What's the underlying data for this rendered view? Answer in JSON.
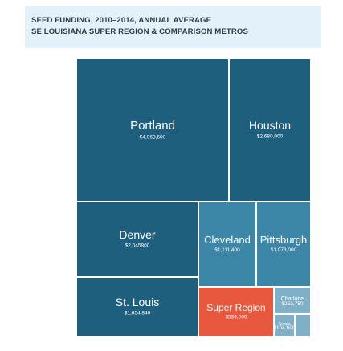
{
  "title": {
    "line1": "SEED FUNDING, 2010–2014, ANNUAL AVERAGE",
    "line2": "SE LOUISIANA SUPER REGION & COMPARISON METROS"
  },
  "colors": {
    "dark": "#1f5f7e",
    "mid": "#3c86a8",
    "light": "#7fb0c8",
    "highlight": "#e8583e"
  },
  "chart_data": {
    "type": "treemap",
    "title": "SEED FUNDING, 2010–2014, ANNUAL AVERAGE",
    "subtitle": "SE LOUISIANA SUPER REGION & COMPARISON METROS",
    "items": [
      {
        "name": "Portland",
        "label": "$4,963,600",
        "value": 4963600,
        "color": "dark"
      },
      {
        "name": "Houston",
        "label": "$2,680,000",
        "value": 2680000,
        "color": "dark"
      },
      {
        "name": "Denver",
        "label": "$2,045800",
        "value": 2045800,
        "color": "dark"
      },
      {
        "name": "St. Louis",
        "label": "$1,654,840",
        "value": 1654840,
        "color": "dark"
      },
      {
        "name": "Cleveland",
        "label": "$1,111,400",
        "value": 1111400,
        "color": "mid"
      },
      {
        "name": "Pittsburgh",
        "label": "$1,073,000",
        "value": 1073000,
        "color": "mid"
      },
      {
        "name": "Super Region",
        "label": "$539,000",
        "value": 539000,
        "color": "highlight"
      },
      {
        "name": "Charlotte",
        "label": "$253,750",
        "value": 253750,
        "color": "light"
      },
      {
        "name": "Tampa",
        "label": "$104,600",
        "value": 104600,
        "color": "light"
      },
      {
        "name": "",
        "label": "",
        "value": 30000,
        "color": "light"
      }
    ]
  }
}
